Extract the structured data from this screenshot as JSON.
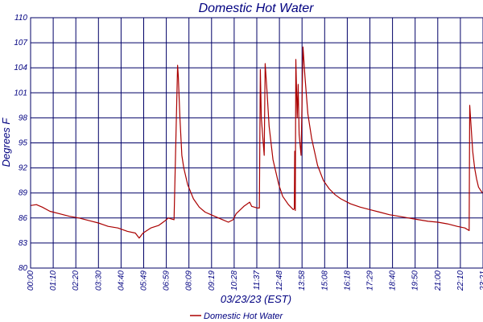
{
  "chart_data": {
    "type": "line",
    "title": "Domestic Hot Water",
    "xlabel": "03/23/23 (EST)",
    "ylabel": "Degrees F",
    "ylim": [
      80,
      110
    ],
    "y_tick_values": [
      80,
      83,
      86,
      89,
      92,
      95,
      98,
      101,
      104,
      107,
      110
    ],
    "y_tick_labels": [
      "80",
      "83",
      "86",
      "89",
      "92",
      "95",
      "98",
      "101",
      "104",
      "107",
      "110"
    ],
    "x_tick_labels": [
      "00:00",
      "01:10",
      "02:20",
      "03:30",
      "04:40",
      "05:49",
      "06:59",
      "08:09",
      "09:19",
      "10:28",
      "11:37",
      "12:48",
      "13:58",
      "15:08",
      "16:18",
      "17:29",
      "18:40",
      "19:50",
      "21:00",
      "22:10",
      "23:21"
    ],
    "grid": true,
    "legend": "bottom-center",
    "series": [
      {
        "name": "Domestic Hot Water",
        "color": "#aa0000",
        "x": [
          0,
          0.3,
          0.6,
          1.0,
          1.5,
          2.0,
          2.5,
          3.0,
          3.5,
          4.0,
          4.5,
          5.0,
          5.4,
          5.6,
          5.8,
          6.2,
          6.6,
          6.9,
          7.1,
          7.4,
          7.58,
          7.62,
          7.7,
          7.8,
          7.9,
          8.1,
          8.4,
          8.7,
          9.0,
          9.3,
          9.6,
          9.9,
          10.2,
          10.45,
          10.6,
          11.0,
          11.3,
          11.4,
          11.7,
          11.8,
          11.85,
          11.9,
          12.05,
          12.1,
          12.2,
          12.3,
          12.5,
          12.8,
          13.0,
          13.3,
          13.55,
          13.6,
          13.62,
          13.65,
          13.68,
          13.75,
          13.8,
          13.85,
          13.95,
          14.05,
          14.15,
          14.3,
          14.5,
          14.8,
          15.1,
          15.4,
          15.7,
          16.0,
          16.5,
          17.0,
          17.5,
          18.0,
          18.5,
          19.0,
          19.5,
          20.0,
          20.5,
          21.0,
          21.5,
          22.0,
          22.4,
          22.62,
          22.65,
          22.72,
          22.8,
          22.9,
          23.0,
          23.1,
          23.3
        ],
        "y": [
          87.5,
          87.6,
          87.3,
          86.8,
          86.5,
          86.2,
          86.0,
          85.7,
          85.4,
          85.0,
          84.8,
          84.4,
          84.2,
          83.6,
          84.2,
          84.8,
          85.1,
          85.6,
          86.0,
          85.8,
          104.3,
          103.0,
          98.0,
          93.5,
          92.0,
          90.0,
          88.3,
          87.3,
          86.7,
          86.4,
          86.1,
          85.8,
          85.5,
          85.8,
          86.5,
          87.4,
          87.9,
          87.4,
          87.2,
          87.2,
          103.8,
          98.0,
          93.5,
          104.5,
          101.0,
          97.0,
          93.0,
          90.0,
          88.6,
          87.6,
          87.0,
          87.1,
          94.0,
          86.9,
          105.0,
          98.0,
          102.0,
          96.0,
          93.5,
          106.5,
          103.0,
          98.5,
          95.5,
          92.3,
          90.5,
          89.5,
          88.8,
          88.3,
          87.7,
          87.3,
          87.0,
          86.7,
          86.4,
          86.2,
          86.0,
          85.8,
          85.6,
          85.5,
          85.3,
          85.0,
          84.8,
          84.5,
          99.5,
          97.0,
          94.0,
          92.0,
          90.7,
          89.7,
          89.0
        ]
      }
    ]
  }
}
